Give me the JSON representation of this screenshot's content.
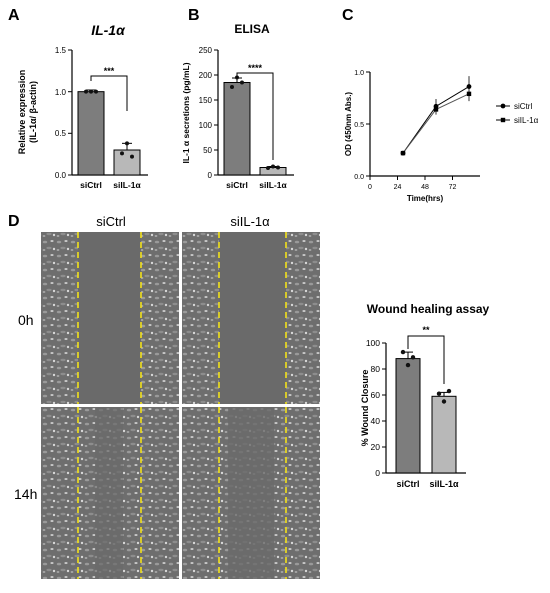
{
  "panels": {
    "A": "A",
    "B": "B",
    "C": "C",
    "D": "D"
  },
  "chart_data": [
    {
      "id": "A",
      "type": "bar",
      "title": "IL-1α",
      "ylabel_line1": "Relative expression",
      "ylabel_line2": "(IL-1α/ β-actin)",
      "categories": [
        "siCtrl",
        "siIL-1α"
      ],
      "values": [
        1.0,
        0.3
      ],
      "errors": [
        0.02,
        0.08
      ],
      "points": [
        [
          1.0,
          1.0,
          1.0
        ],
        [
          0.26,
          0.38,
          0.22
        ]
      ],
      "colors": [
        "#7d7d7d",
        "#b8b8b8"
      ],
      "ylim": [
        0,
        1.5
      ],
      "yticks": [
        "0.0",
        "0.5",
        "1.0",
        "1.5"
      ],
      "significance": "***"
    },
    {
      "id": "B",
      "type": "bar",
      "title": "ELISA",
      "ylabel": "IL-1 α secretions (pg/mL)",
      "categories": [
        "siCtrl",
        "siIL-1α"
      ],
      "values": [
        185,
        15
      ],
      "errors": [
        9,
        2
      ],
      "points": [
        [
          176,
          195,
          185
        ],
        [
          14,
          17,
          15
        ]
      ],
      "colors": [
        "#7d7d7d",
        "#b8b8b8"
      ],
      "ylim": [
        0,
        250
      ],
      "yticks": [
        "0",
        "50",
        "100",
        "150",
        "200",
        "250"
      ],
      "significance": "****"
    },
    {
      "id": "C",
      "type": "line",
      "ylabel": "OD (450nm Abs.)",
      "xlabel": "Time(hrs)",
      "xlim": [
        0,
        80
      ],
      "ylim": [
        0,
        1.0
      ],
      "xticks": [
        "0",
        "24",
        "48",
        "72"
      ],
      "yticks": [
        "0.0",
        "0.5",
        "1.0"
      ],
      "series": [
        {
          "name": "siCtrl",
          "x": [
            24,
            48,
            72
          ],
          "y": [
            0.22,
            0.67,
            0.86
          ],
          "err": [
            0.01,
            0.07,
            0.1
          ],
          "marker": "circle"
        },
        {
          "name": "siIL-1α",
          "x": [
            24,
            48,
            72
          ],
          "y": [
            0.22,
            0.64,
            0.79
          ],
          "err": [
            0.01,
            0.05,
            0.07
          ],
          "marker": "square"
        }
      ]
    },
    {
      "id": "D-chart",
      "type": "bar",
      "title": "Wound healing assay",
      "ylabel": "% Wound Closure",
      "categories": [
        "siCtrl",
        "siIL-1α"
      ],
      "values": [
        88,
        59
      ],
      "errors": [
        5,
        3
      ],
      "points": [
        [
          93,
          83,
          89
        ],
        [
          61,
          55,
          63
        ]
      ],
      "colors": [
        "#7d7d7d",
        "#b8b8b8"
      ],
      "ylim": [
        0,
        100
      ],
      "yticks": [
        "0",
        "20",
        "40",
        "60",
        "80",
        "100"
      ],
      "significance": "**"
    }
  ],
  "micrographs": {
    "columns": [
      "siCtrl",
      "siIL-1α"
    ],
    "rows": [
      "0h",
      "14h"
    ]
  }
}
